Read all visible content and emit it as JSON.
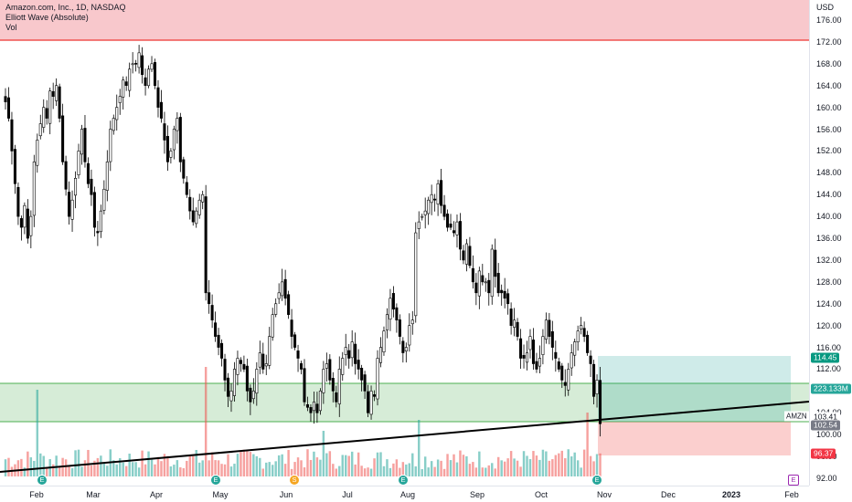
{
  "legend": {
    "symbol": "Amazon.com, Inc., 1D, NASDAQ",
    "indicator": "Elliott Wave (Absolute)",
    "volume": "Vol"
  },
  "currency": "USD",
  "price_ticks": [
    "176.00",
    "172.00",
    "168.00",
    "164.00",
    "160.00",
    "156.00",
    "152.00",
    "148.00",
    "144.00",
    "140.00",
    "136.00",
    "132.00",
    "128.00",
    "124.00",
    "120.00",
    "116.00",
    "112.00",
    "108.00",
    "104.00",
    "100.00",
    "96.00",
    "92.00"
  ],
  "time_ticks": [
    "Feb",
    "Mar",
    "Apr",
    "May",
    "Jun",
    "Jul",
    "Aug",
    "Sep",
    "Oct",
    "Nov",
    "Dec",
    "2023",
    "Feb"
  ],
  "labels": {
    "target": "114.45",
    "volume": "223.133M",
    "ticker": "AMZN",
    "last1": "103.41",
    "last2": "102.54",
    "stop": "96.37"
  },
  "events": {
    "earnings": "E",
    "split": "S"
  },
  "colors": {
    "up": "#26a69a",
    "down": "#ef5350",
    "candle_up_body": "#ffffff",
    "candle_down_body": "#000000",
    "zone_fill": "#c8e6c9",
    "zone_line": "#4caf50",
    "red_zone": "#f8c8cc",
    "red_line": "#ef5350",
    "target_label": "#089981",
    "stop_label": "#f23645",
    "grey_label": "#787b86"
  },
  "chart_data": {
    "type": "candlestick",
    "symbol": "AMZN",
    "interval": "1D",
    "y_range": [
      90.5,
      178
    ],
    "x_range": [
      "2022-01-18",
      "2023-02-10"
    ],
    "closes": [
      161,
      158,
      152,
      146,
      140,
      138,
      142,
      136,
      140,
      150,
      154,
      157,
      160,
      158,
      163,
      162,
      164,
      158,
      150,
      145,
      140,
      143,
      147,
      152,
      156,
      150,
      146,
      144,
      138,
      137,
      141,
      145,
      150,
      156,
      158,
      160,
      162,
      165,
      164,
      167,
      168,
      168,
      170,
      166,
      164,
      167,
      168,
      164,
      160,
      158,
      154,
      150,
      152,
      156,
      158,
      150,
      147,
      144,
      141,
      139,
      141,
      143,
      144,
      126,
      124,
      121,
      118,
      116,
      114,
      110,
      107,
      108,
      112,
      114,
      113,
      112,
      108,
      106,
      108,
      112,
      115,
      112,
      113,
      118,
      122,
      124,
      126,
      128,
      125,
      122,
      118,
      116,
      114,
      112,
      106,
      105,
      104,
      106,
      104,
      108,
      112,
      113,
      110,
      108,
      106,
      112,
      114,
      116,
      114,
      117,
      113,
      112,
      110,
      108,
      104,
      108,
      107,
      114,
      116,
      119,
      122,
      125,
      123,
      121,
      118,
      115,
      116,
      120,
      121,
      137,
      139,
      140,
      141,
      143,
      144,
      143,
      146,
      142,
      140,
      138,
      138,
      137,
      139,
      134,
      132,
      135,
      131,
      128,
      126,
      130,
      128,
      128,
      126,
      134,
      129,
      126,
      126,
      125,
      124,
      120,
      121,
      118,
      114,
      114,
      115,
      118,
      113,
      112,
      114,
      118,
      121,
      118,
      116,
      114,
      112,
      110,
      109,
      112,
      115,
      117,
      119,
      120,
      118,
      115,
      113,
      107,
      110,
      102
    ]
  }
}
